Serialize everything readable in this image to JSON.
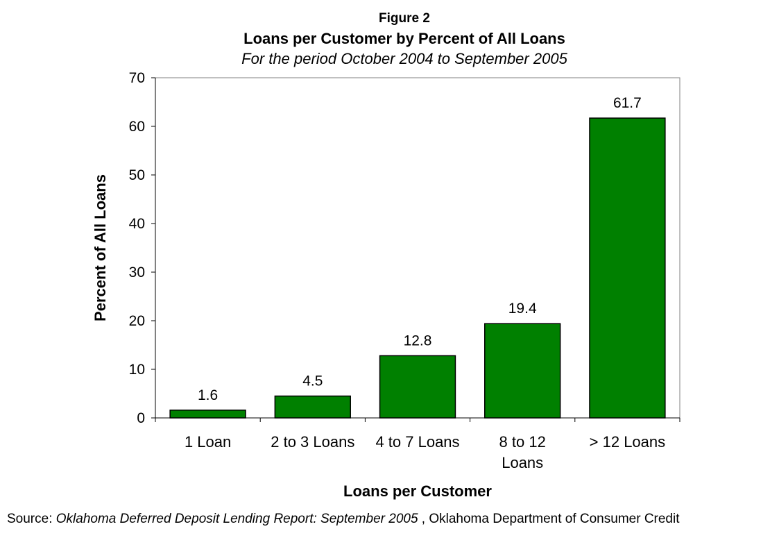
{
  "figure_label": "Figure 2",
  "chart_data": {
    "type": "bar",
    "title": "Loans per Customer by Percent of All Loans",
    "subtitle": "For the period October 2004  to September 2005",
    "xlabel": "Loans per Customer",
    "ylabel": "Percent of All Loans",
    "categories": [
      [
        "1 Loan"
      ],
      [
        "2 to 3 Loans"
      ],
      [
        "4 to 7 Loans"
      ],
      [
        "8 to 12",
        "Loans"
      ],
      [
        "> 12 Loans"
      ]
    ],
    "values": [
      1.6,
      4.5,
      12.8,
      19.4,
      61.7
    ],
    "data_labels": [
      "1.6",
      "4.5",
      "12.8",
      "19.4",
      "61.7"
    ],
    "ylim": [
      0,
      70
    ],
    "yticks": [
      0,
      10,
      20,
      30,
      40,
      50,
      60,
      70
    ],
    "grid": false,
    "legend": "none",
    "bar_color": "#008000",
    "bar_edge_color": "#000000"
  },
  "source": {
    "prefix": "Source: ",
    "report": "Oklahoma Deferred Deposit Lending Report: September 2005",
    "suffix": " , Oklahoma Department of Consumer Credit"
  }
}
